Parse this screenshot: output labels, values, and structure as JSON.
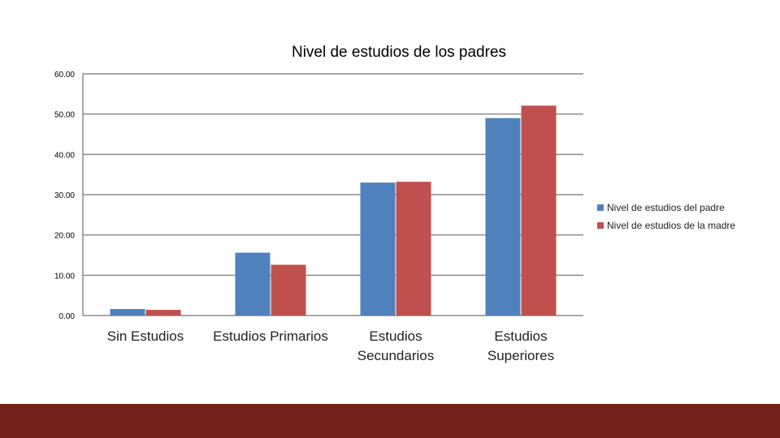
{
  "chart_data": {
    "type": "bar",
    "title": "Nivel de estudios de los padres",
    "categories": [
      [
        "Sin Estudios"
      ],
      [
        "Estudios Primarios"
      ],
      [
        "Estudios",
        "Secundarios"
      ],
      [
        "Estudios",
        "Superiores"
      ]
    ],
    "series": [
      {
        "name": "Nivel de estudios del padre",
        "color": "#4F81BD",
        "values": [
          1.6,
          15.6,
          33.0,
          49.0
        ]
      },
      {
        "name": "Nivel de estudios de la madre",
        "color": "#C0504D",
        "values": [
          1.4,
          12.6,
          33.2,
          52.1
        ]
      }
    ],
    "yticks": [
      "0.00",
      "10.00",
      "20.00",
      "30.00",
      "40.00",
      "50.00",
      "60.00"
    ],
    "ylim": [
      0,
      60
    ],
    "grid": true,
    "legend_position": "right"
  },
  "theme": {
    "footer_color": "#74201A",
    "grid_color": "#8C8C8C",
    "axis_color": "#8C8C8C"
  }
}
